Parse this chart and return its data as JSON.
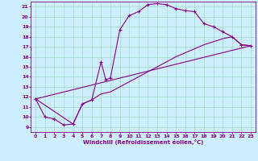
{
  "xlabel": "Windchill (Refroidissement éolien,°C)",
  "bg_color": "#cceeff",
  "grid_color": "#aaddcc",
  "line_color": "#880088",
  "xlim": [
    -0.5,
    23.5
  ],
  "ylim": [
    8.5,
    21.5
  ],
  "yticks": [
    9,
    10,
    11,
    12,
    13,
    14,
    15,
    16,
    17,
    18,
    19,
    20,
    21
  ],
  "xticks": [
    0,
    1,
    2,
    3,
    4,
    5,
    6,
    7,
    8,
    9,
    10,
    11,
    12,
    13,
    14,
    15,
    16,
    17,
    18,
    19,
    20,
    21,
    22,
    23
  ],
  "curve1_x": [
    0,
    1,
    2,
    3,
    4,
    5,
    6,
    7,
    7.5,
    8,
    9,
    10,
    11,
    12,
    13,
    14,
    15,
    16,
    17,
    18,
    19,
    20,
    21,
    22,
    23
  ],
  "curve1_y": [
    11.8,
    10.0,
    9.8,
    9.2,
    9.3,
    11.3,
    11.7,
    15.5,
    13.7,
    13.9,
    18.7,
    20.1,
    20.5,
    21.2,
    21.3,
    21.2,
    20.8,
    20.6,
    20.5,
    19.3,
    19.0,
    18.5,
    18.0,
    17.2,
    17.1
  ],
  "curve2_x": [
    0,
    23
  ],
  "curve2_y": [
    11.8,
    17.1
  ],
  "curve3_x": [
    0,
    4,
    5,
    6,
    7,
    8,
    9,
    10,
    11,
    12,
    13,
    14,
    15,
    16,
    17,
    18,
    19,
    20,
    21,
    22,
    23
  ],
  "curve3_y": [
    11.8,
    9.3,
    11.3,
    11.7,
    12.3,
    12.5,
    13.0,
    13.5,
    14.0,
    14.5,
    15.0,
    15.5,
    16.0,
    16.4,
    16.8,
    17.2,
    17.5,
    17.8,
    18.0,
    17.2,
    17.1
  ]
}
